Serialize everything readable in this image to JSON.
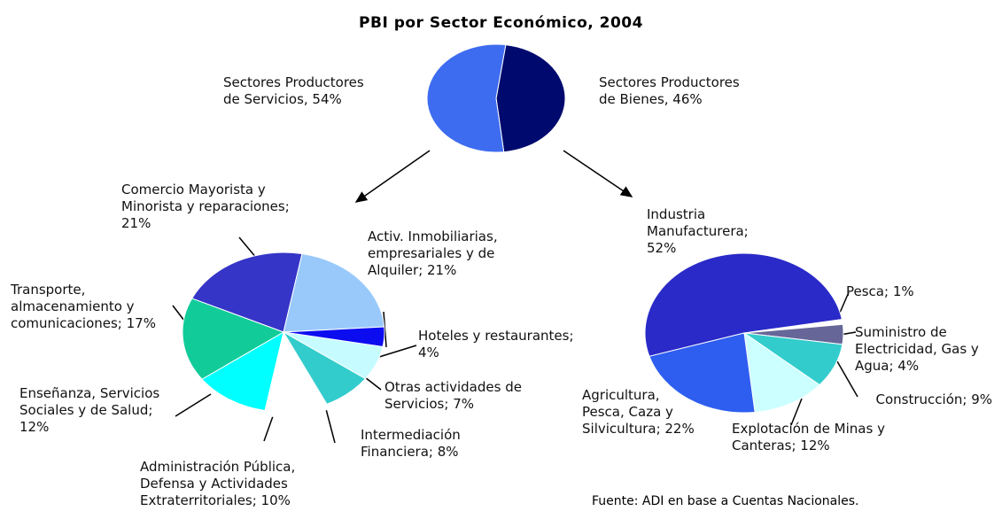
{
  "title": "PBI por Sector Económico, 2004",
  "source": "Fuente: ADI en base a Cuentas Nacionales.",
  "chart_data": [
    {
      "type": "pie",
      "categories": [
        "Sectores Productores de Bienes, 46%",
        "Sectores Productores de Servicios, 54%"
      ],
      "values": [
        46,
        54
      ],
      "colors": [
        "#000a6e",
        "#3d6cf0"
      ]
    },
    {
      "type": "pie",
      "categories": [
        "Comercio Mayorista y Minorista y reparaciones; 21%",
        "Activ. Inmobiliarias, empresariales y de Alquiler; 21%",
        "Hoteles y restaurantes; 4%",
        "Otras actividades de Servicios; 7%",
        "Intermediación Financiera; 8%",
        "Administración Pública, Defensa y Actividades Extraterritoriales; 10%",
        "Enseñanza, Servicios Sociales y de Salud; 12%",
        "Transporte, almacenamiento y comunicaciones; 17%"
      ],
      "values": [
        21,
        21,
        4,
        7,
        8,
        10,
        12,
        17
      ],
      "colors": [
        "#3535c8",
        "#99c9fb",
        "#0c0cf0",
        "#c6fbff",
        "#33cccc",
        "#ffffff",
        "#00ffff",
        "#11cc99"
      ]
    },
    {
      "type": "pie",
      "categories": [
        "Industria Manufacturera; 52%",
        "Pesca; 1%",
        "Suministro de Electricidad, Gas y Agua; 4%",
        "Construcción; 9%",
        "Explotación de Minas y Canteras; 12%",
        "Agricultura, Pesca, Caza y Silvicultura; 22%"
      ],
      "values": [
        52,
        1,
        4,
        9,
        12,
        22
      ],
      "colors": [
        "#2a2ac8",
        "#ffffff",
        "#666699",
        "#33cccc",
        "#ccffff",
        "#2e5ef0"
      ]
    }
  ]
}
